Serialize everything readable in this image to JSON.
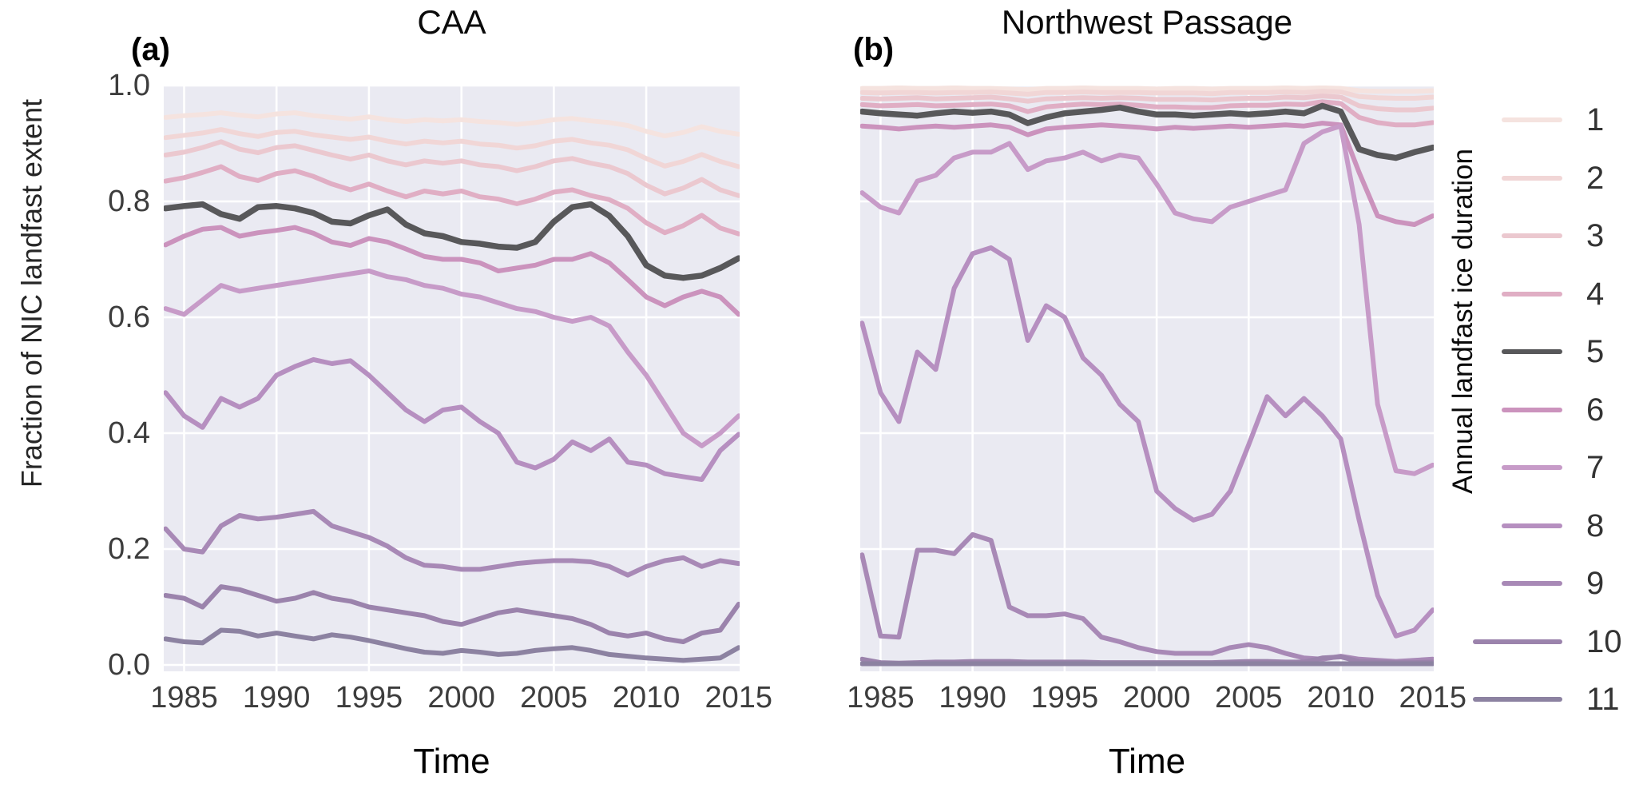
{
  "style": {
    "plot_bg": "#eaeaf2",
    "grid_color": "#ffffff",
    "tick_text_color": "#3d3d3d",
    "title_text_color": "#0a0a0a",
    "highlight_series_color": "#58585a"
  },
  "legend": {
    "title": "Annual landfast ice duration",
    "items": [
      {
        "label": "1",
        "color": "#f5e3df"
      },
      {
        "label": "2",
        "color": "#f1d6d6"
      },
      {
        "label": "3",
        "color": "#ebc8cf"
      },
      {
        "label": "4",
        "color": "#e0aec4"
      },
      {
        "label": "5",
        "color": "#58585a"
      },
      {
        "label": "6",
        "color": "#cb93bd"
      },
      {
        "label": "7",
        "color": "#c79bc8"
      },
      {
        "label": "8",
        "color": "#b68fc0"
      },
      {
        "label": "9",
        "color": "#a889b6"
      },
      {
        "label": "10",
        "color": "#9b83ac"
      },
      {
        "label": "11",
        "color": "#8c82a1"
      }
    ]
  },
  "chart_data": [
    {
      "type": "line",
      "panel_label": "(a)",
      "title": "CAA",
      "xlabel": "Time",
      "ylabel": "Fraction of NIC landfast extent",
      "x_range": [
        1983.9,
        2015.05
      ],
      "ylim": [
        0.0,
        1.0
      ],
      "x_ticks": [
        1985,
        1990,
        1995,
        2000,
        2005,
        2010,
        2015
      ],
      "x_gridlines": [
        1985,
        1990,
        1995,
        2000,
        2005,
        2010
      ],
      "y_ticks": [
        "1.0",
        "0.8",
        "0.6",
        "0.4",
        "0.2",
        "0.0"
      ],
      "y_tick_values": [
        1.0,
        0.8,
        0.6,
        0.4,
        0.2,
        0.0
      ],
      "grid": true,
      "legend_position": "right-outside",
      "years": [
        1984,
        1985,
        1986,
        1987,
        1988,
        1989,
        1990,
        1991,
        1992,
        1993,
        1994,
        1995,
        1996,
        1997,
        1998,
        1999,
        2000,
        2001,
        2002,
        2003,
        2004,
        2005,
        2006,
        2007,
        2008,
        2009,
        2010,
        2011,
        2012,
        2013,
        2014,
        2015
      ],
      "series": [
        {
          "name": "1",
          "color": "#f5e3df",
          "width": 6,
          "values": [
            0.945,
            0.948,
            0.95,
            0.953,
            0.949,
            0.946,
            0.951,
            0.953,
            0.948,
            0.945,
            0.942,
            0.946,
            0.941,
            0.938,
            0.941,
            0.939,
            0.941,
            0.938,
            0.936,
            0.933,
            0.936,
            0.941,
            0.943,
            0.939,
            0.936,
            0.931,
            0.921,
            0.913,
            0.919,
            0.929,
            0.921,
            0.916
          ]
        },
        {
          "name": "2",
          "color": "#f1d6d6",
          "width": 6,
          "values": [
            0.91,
            0.914,
            0.918,
            0.924,
            0.917,
            0.912,
            0.919,
            0.921,
            0.915,
            0.911,
            0.907,
            0.911,
            0.904,
            0.899,
            0.904,
            0.901,
            0.904,
            0.899,
            0.897,
            0.892,
            0.896,
            0.904,
            0.907,
            0.901,
            0.897,
            0.889,
            0.874,
            0.861,
            0.869,
            0.881,
            0.869,
            0.86
          ]
        },
        {
          "name": "3",
          "color": "#ebc8cf",
          "width": 6,
          "values": [
            0.88,
            0.885,
            0.893,
            0.903,
            0.89,
            0.884,
            0.893,
            0.896,
            0.888,
            0.88,
            0.873,
            0.88,
            0.87,
            0.863,
            0.87,
            0.866,
            0.87,
            0.863,
            0.86,
            0.853,
            0.86,
            0.87,
            0.874,
            0.866,
            0.86,
            0.848,
            0.828,
            0.813,
            0.823,
            0.838,
            0.82,
            0.81
          ]
        },
        {
          "name": "4",
          "color": "#e0aec4",
          "width": 6,
          "values": [
            0.835,
            0.841,
            0.85,
            0.86,
            0.843,
            0.836,
            0.848,
            0.853,
            0.843,
            0.83,
            0.82,
            0.83,
            0.818,
            0.808,
            0.818,
            0.813,
            0.818,
            0.808,
            0.804,
            0.796,
            0.804,
            0.816,
            0.82,
            0.81,
            0.803,
            0.788,
            0.763,
            0.746,
            0.758,
            0.776,
            0.754,
            0.744
          ]
        },
        {
          "name": "5",
          "color": "#58585a",
          "width": 7.5,
          "values": [
            0.788,
            0.792,
            0.795,
            0.778,
            0.77,
            0.79,
            0.792,
            0.788,
            0.78,
            0.765,
            0.762,
            0.776,
            0.786,
            0.76,
            0.745,
            0.74,
            0.73,
            0.727,
            0.722,
            0.72,
            0.73,
            0.765,
            0.79,
            0.795,
            0.775,
            0.74,
            0.69,
            0.672,
            0.668,
            0.672,
            0.685,
            0.702
          ]
        },
        {
          "name": "6",
          "color": "#cb93bd",
          "width": 6,
          "values": [
            0.725,
            0.74,
            0.752,
            0.755,
            0.74,
            0.746,
            0.75,
            0.755,
            0.745,
            0.73,
            0.724,
            0.736,
            0.73,
            0.718,
            0.705,
            0.7,
            0.7,
            0.694,
            0.68,
            0.685,
            0.69,
            0.7,
            0.7,
            0.71,
            0.694,
            0.665,
            0.635,
            0.62,
            0.635,
            0.645,
            0.635,
            0.605
          ]
        },
        {
          "name": "7",
          "color": "#c79bc8",
          "width": 6,
          "values": [
            0.615,
            0.605,
            0.63,
            0.655,
            0.645,
            0.65,
            0.655,
            0.66,
            0.665,
            0.67,
            0.675,
            0.68,
            0.67,
            0.665,
            0.655,
            0.65,
            0.64,
            0.635,
            0.625,
            0.615,
            0.61,
            0.6,
            0.593,
            0.6,
            0.585,
            0.54,
            0.5,
            0.45,
            0.4,
            0.378,
            0.4,
            0.43
          ]
        },
        {
          "name": "8",
          "color": "#b68fc0",
          "width": 6,
          "values": [
            0.47,
            0.43,
            0.41,
            0.46,
            0.445,
            0.46,
            0.5,
            0.515,
            0.527,
            0.52,
            0.525,
            0.5,
            0.47,
            0.44,
            0.42,
            0.44,
            0.445,
            0.42,
            0.4,
            0.35,
            0.34,
            0.355,
            0.385,
            0.37,
            0.39,
            0.35,
            0.345,
            0.33,
            0.325,
            0.32,
            0.37,
            0.398
          ]
        },
        {
          "name": "9",
          "color": "#a889b6",
          "width": 6,
          "values": [
            0.235,
            0.2,
            0.195,
            0.24,
            0.258,
            0.252,
            0.255,
            0.26,
            0.265,
            0.24,
            0.23,
            0.22,
            0.205,
            0.185,
            0.172,
            0.17,
            0.165,
            0.165,
            0.17,
            0.175,
            0.178,
            0.18,
            0.18,
            0.178,
            0.17,
            0.155,
            0.17,
            0.18,
            0.185,
            0.17,
            0.18,
            0.175
          ]
        },
        {
          "name": "10",
          "color": "#9b83ac",
          "width": 6,
          "values": [
            0.12,
            0.115,
            0.1,
            0.135,
            0.13,
            0.12,
            0.11,
            0.115,
            0.125,
            0.115,
            0.11,
            0.1,
            0.095,
            0.09,
            0.085,
            0.075,
            0.07,
            0.08,
            0.09,
            0.095,
            0.09,
            0.085,
            0.08,
            0.07,
            0.055,
            0.05,
            0.055,
            0.045,
            0.04,
            0.055,
            0.06,
            0.105
          ]
        },
        {
          "name": "11",
          "color": "#8c82a1",
          "width": 6,
          "values": [
            0.045,
            0.04,
            0.038,
            0.06,
            0.058,
            0.05,
            0.055,
            0.05,
            0.045,
            0.052,
            0.048,
            0.042,
            0.035,
            0.028,
            0.022,
            0.02,
            0.025,
            0.022,
            0.018,
            0.02,
            0.025,
            0.028,
            0.03,
            0.025,
            0.018,
            0.015,
            0.012,
            0.01,
            0.008,
            0.01,
            0.012,
            0.03
          ]
        }
      ]
    },
    {
      "type": "line",
      "panel_label": "(b)",
      "title": "Northwest Passage",
      "xlabel": "Time",
      "ylabel": "",
      "x_range": [
        1983.9,
        2015.05
      ],
      "ylim": [
        0.0,
        1.0
      ],
      "x_ticks": [
        1985,
        1990,
        1995,
        2000,
        2005,
        2010,
        2015
      ],
      "x_gridlines": [
        1985,
        1990,
        1995,
        2000,
        2005,
        2010
      ],
      "y_ticks": [],
      "y_tick_values": [
        1.0,
        0.8,
        0.6,
        0.4,
        0.2,
        0.0
      ],
      "grid": true,
      "legend_position": "right-outside",
      "years": [
        1984,
        1985,
        1986,
        1987,
        1988,
        1989,
        1990,
        1991,
        1992,
        1993,
        1994,
        1995,
        1996,
        1997,
        1998,
        1999,
        2000,
        2001,
        2002,
        2003,
        2004,
        2005,
        2006,
        2007,
        2008,
        2009,
        2010,
        2011,
        2012,
        2013,
        2014,
        2015
      ],
      "series": [
        {
          "name": "1",
          "color": "#f5e3df",
          "width": 6,
          "values": [
            0.995,
            0.995,
            0.996,
            0.995,
            0.995,
            0.996,
            0.995,
            0.995,
            0.994,
            0.993,
            0.995,
            0.995,
            0.996,
            0.995,
            0.995,
            0.995,
            0.994,
            0.995,
            0.995,
            0.994,
            0.995,
            0.995,
            0.995,
            0.996,
            0.995,
            0.996,
            0.995,
            0.991,
            0.99,
            0.99,
            0.99,
            0.991
          ]
        },
        {
          "name": "2",
          "color": "#f1d6d6",
          "width": 6,
          "values": [
            0.988,
            0.987,
            0.988,
            0.988,
            0.987,
            0.988,
            0.988,
            0.989,
            0.987,
            0.985,
            0.988,
            0.988,
            0.989,
            0.988,
            0.988,
            0.988,
            0.987,
            0.987,
            0.987,
            0.986,
            0.988,
            0.988,
            0.988,
            0.989,
            0.988,
            0.99,
            0.989,
            0.981,
            0.979,
            0.978,
            0.978,
            0.98
          ]
        },
        {
          "name": "3",
          "color": "#ebc8cf",
          "width": 6,
          "values": [
            0.978,
            0.977,
            0.978,
            0.979,
            0.977,
            0.978,
            0.979,
            0.98,
            0.977,
            0.973,
            0.977,
            0.978,
            0.979,
            0.978,
            0.979,
            0.978,
            0.976,
            0.976,
            0.976,
            0.975,
            0.977,
            0.978,
            0.978,
            0.98,
            0.979,
            0.982,
            0.98,
            0.965,
            0.96,
            0.958,
            0.958,
            0.961
          ]
        },
        {
          "name": "4",
          "color": "#e0aec4",
          "width": 6,
          "values": [
            0.967,
            0.965,
            0.966,
            0.967,
            0.965,
            0.966,
            0.967,
            0.968,
            0.965,
            0.955,
            0.963,
            0.966,
            0.968,
            0.967,
            0.968,
            0.966,
            0.963,
            0.963,
            0.962,
            0.962,
            0.965,
            0.966,
            0.966,
            0.968,
            0.967,
            0.972,
            0.969,
            0.945,
            0.936,
            0.932,
            0.932,
            0.936
          ]
        },
        {
          "name": "5",
          "color": "#58585a",
          "width": 7.5,
          "values": [
            0.955,
            0.952,
            0.95,
            0.948,
            0.952,
            0.955,
            0.953,
            0.955,
            0.95,
            0.935,
            0.945,
            0.952,
            0.955,
            0.958,
            0.962,
            0.955,
            0.95,
            0.95,
            0.948,
            0.95,
            0.952,
            0.95,
            0.952,
            0.955,
            0.952,
            0.965,
            0.955,
            0.89,
            0.88,
            0.875,
            0.885,
            0.893
          ]
        },
        {
          "name": "6",
          "color": "#cb93bd",
          "width": 6,
          "values": [
            0.93,
            0.928,
            0.925,
            0.928,
            0.93,
            0.928,
            0.93,
            0.932,
            0.928,
            0.915,
            0.925,
            0.928,
            0.93,
            0.932,
            0.93,
            0.928,
            0.925,
            0.928,
            0.926,
            0.928,
            0.93,
            0.928,
            0.93,
            0.932,
            0.93,
            0.935,
            0.932,
            0.85,
            0.775,
            0.765,
            0.76,
            0.775
          ]
        },
        {
          "name": "7",
          "color": "#c79bc8",
          "width": 6,
          "values": [
            0.815,
            0.79,
            0.78,
            0.835,
            0.845,
            0.875,
            0.885,
            0.885,
            0.9,
            0.855,
            0.87,
            0.875,
            0.885,
            0.87,
            0.88,
            0.875,
            0.83,
            0.78,
            0.77,
            0.765,
            0.79,
            0.8,
            0.81,
            0.82,
            0.9,
            0.92,
            0.93,
            0.76,
            0.45,
            0.335,
            0.33,
            0.345
          ]
        },
        {
          "name": "8",
          "color": "#b68fc0",
          "width": 6,
          "values": [
            0.59,
            0.47,
            0.42,
            0.54,
            0.51,
            0.65,
            0.71,
            0.72,
            0.7,
            0.56,
            0.62,
            0.6,
            0.53,
            0.5,
            0.45,
            0.42,
            0.3,
            0.27,
            0.25,
            0.26,
            0.3,
            0.38,
            0.463,
            0.43,
            0.46,
            0.43,
            0.39,
            0.25,
            0.12,
            0.05,
            0.06,
            0.095
          ]
        },
        {
          "name": "9",
          "color": "#a889b6",
          "width": 6,
          "values": [
            0.19,
            0.05,
            0.048,
            0.198,
            0.198,
            0.192,
            0.225,
            0.215,
            0.1,
            0.085,
            0.085,
            0.088,
            0.08,
            0.048,
            0.04,
            0.03,
            0.023,
            0.02,
            0.02,
            0.02,
            0.03,
            0.035,
            0.03,
            0.02,
            0.012,
            0.01,
            0.015,
            0.01,
            0.008,
            0.006,
            0.008,
            0.01
          ]
        },
        {
          "name": "10",
          "color": "#9b83ac",
          "width": 6,
          "values": [
            0.01,
            0.004,
            0.003,
            0.004,
            0.005,
            0.005,
            0.006,
            0.006,
            0.006,
            0.005,
            0.005,
            0.005,
            0.005,
            0.004,
            0.004,
            0.004,
            0.004,
            0.004,
            0.004,
            0.004,
            0.005,
            0.006,
            0.006,
            0.005,
            0.005,
            0.012,
            0.014,
            0.006,
            0.005,
            0.004,
            0.004,
            0.005
          ]
        },
        {
          "name": "11",
          "color": "#8c82a1",
          "width": 6,
          "values": [
            0.002,
            0.002,
            0.002,
            0.002,
            0.002,
            0.002,
            0.002,
            0.002,
            0.002,
            0.002,
            0.002,
            0.002,
            0.002,
            0.002,
            0.002,
            0.002,
            0.002,
            0.002,
            0.002,
            0.002,
            0.002,
            0.002,
            0.002,
            0.002,
            0.002,
            0.002,
            0.002,
            0.002,
            0.002,
            0.002,
            0.002,
            0.002
          ]
        }
      ]
    }
  ]
}
